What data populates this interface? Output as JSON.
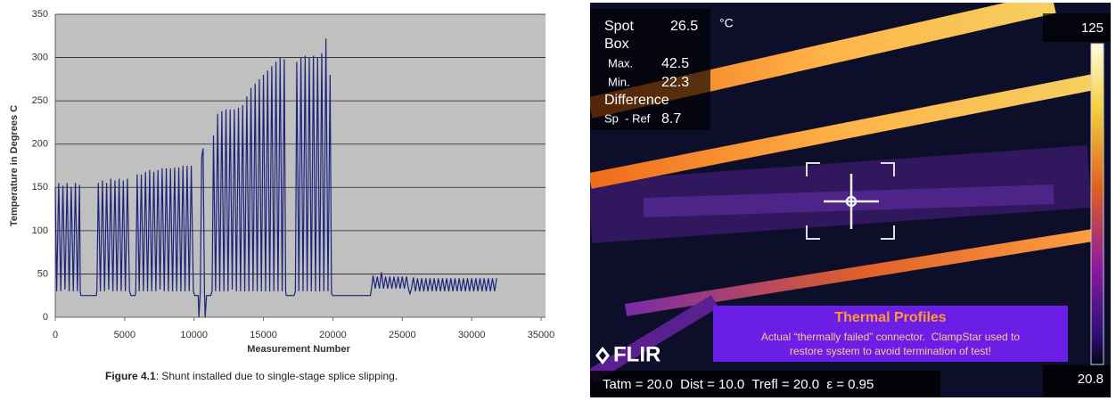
{
  "chart_data": {
    "type": "line",
    "x_label": "Measurement Number",
    "y_label": "Temperature in Degrees C",
    "xlim": [
      0,
      35000
    ],
    "xticks": [
      0,
      5000,
      10000,
      15000,
      20000,
      25000,
      30000,
      35000
    ],
    "ylim": [
      0,
      350
    ],
    "yticks": [
      0,
      50,
      100,
      150,
      200,
      250,
      300,
      350
    ],
    "grid": true,
    "background": "#c0c0c0",
    "color": "#1c237a",
    "x": [
      0,
      100,
      250,
      400,
      550,
      700,
      850,
      1000,
      1150,
      1300,
      1450,
      1600,
      1750,
      1800,
      1850,
      2950,
      3000,
      3100,
      3250,
      3400,
      3550,
      3700,
      3850,
      4000,
      4150,
      4300,
      4450,
      4600,
      4750,
      4900,
      5050,
      5200,
      5350,
      5400,
      5450,
      5750,
      5800,
      5900,
      6050,
      6200,
      6350,
      6500,
      6650,
      6800,
      6950,
      7100,
      7250,
      7400,
      7550,
      7700,
      7850,
      8000,
      8150,
      8300,
      8450,
      8600,
      8750,
      8900,
      9050,
      9200,
      9350,
      9500,
      9650,
      9800,
      9950,
      10050,
      10300,
      10350,
      10450,
      10550,
      10650,
      10750,
      10800,
      10900,
      11200,
      11300,
      11400,
      11550,
      11700,
      11850,
      12000,
      12150,
      12300,
      12450,
      12600,
      12750,
      12900,
      13050,
      13200,
      13350,
      13500,
      13650,
      13800,
      13950,
      14100,
      14250,
      14400,
      14550,
      14700,
      14850,
      15000,
      15150,
      15300,
      15450,
      15600,
      15750,
      15900,
      16050,
      16200,
      16350,
      16500,
      16600,
      16650,
      17200,
      17300,
      17400,
      17550,
      17700,
      17850,
      18000,
      18150,
      18300,
      18450,
      18600,
      18750,
      18900,
      19050,
      19200,
      19350,
      19500,
      19650,
      19800,
      19900,
      20000,
      20100,
      22700,
      22800,
      22900,
      23050,
      23200,
      23350,
      23500,
      23650,
      23800,
      23950,
      24100,
      24250,
      24400,
      24550,
      24700,
      24850,
      25000,
      25150,
      25300,
      25450,
      25550,
      25650,
      25800,
      25950,
      26100,
      26250,
      26400,
      26550,
      26700,
      26850,
      27000,
      27150,
      27300,
      27450,
      27600,
      27750,
      27900,
      28050,
      28200,
      28350,
      28500,
      28650,
      28800,
      28950,
      29100,
      29250,
      29400,
      29550,
      29700,
      29850,
      30000,
      30150,
      30300,
      30450,
      30600,
      30750,
      30900,
      31050,
      31200,
      31350,
      31500,
      31650,
      31800
    ],
    "values": [
      150,
      30,
      155,
      30,
      152,
      32,
      155,
      30,
      150,
      30,
      155,
      30,
      153,
      30,
      25,
      25,
      30,
      155,
      30,
      158,
      30,
      155,
      32,
      160,
      30,
      158,
      30,
      160,
      30,
      158,
      30,
      160,
      30,
      28,
      25,
      25,
      30,
      165,
      30,
      165,
      30,
      168,
      30,
      170,
      30,
      168,
      30,
      170,
      32,
      172,
      30,
      172,
      30,
      172,
      30,
      173,
      30,
      173,
      30,
      175,
      30,
      175,
      30,
      175,
      30,
      25,
      25,
      0,
      30,
      185,
      195,
      30,
      0,
      25,
      25,
      30,
      210,
      30,
      235,
      30,
      238,
      30,
      240,
      30,
      240,
      32,
      240,
      30,
      242,
      30,
      245,
      30,
      255,
      30,
      265,
      30,
      270,
      30,
      275,
      30,
      280,
      30,
      285,
      30,
      290,
      30,
      295,
      30,
      300,
      30,
      298,
      30,
      25,
      25,
      30,
      295,
      30,
      300,
      30,
      302,
      30,
      300,
      30,
      302,
      30,
      300,
      30,
      305,
      30,
      322,
      30,
      280,
      28,
      25,
      25,
      25,
      35,
      48,
      33,
      47,
      33,
      52,
      33,
      47,
      33,
      47,
      33,
      47,
      33,
      47,
      33,
      47,
      33,
      47,
      33,
      27,
      32,
      46,
      30,
      45,
      30,
      45,
      30,
      45,
      30,
      45,
      30,
      45,
      30,
      45,
      30,
      45,
      30,
      45,
      30,
      45,
      30,
      45,
      30,
      45,
      30,
      45,
      30,
      45,
      30,
      45,
      30,
      45,
      30,
      45,
      30,
      45,
      30,
      45,
      30,
      45,
      30,
      45
    ]
  },
  "caption": {
    "label": "Figure 4.1",
    "text": ": Shunt installed due to single-stage splice slipping."
  },
  "thermal_image": {
    "spot_label": "Spot",
    "spot_value": "26.5",
    "unit": "°C",
    "box_label": "Box",
    "max_label": "Max.",
    "max_value": "42.5",
    "min_label": "Min.",
    "min_value": "22.3",
    "difference_label": "Difference",
    "difference_ref": "Sp  - Ref",
    "difference_value": "8.7",
    "scale_max": "125",
    "scale_min": "20.8",
    "logo": "FLIR",
    "parameters": "Tatm = 20.0  Dist = 10.0  Trefl = 20.0  ε = 0.95",
    "note_title": "Thermal Profiles",
    "note_text": [
      "Actual “thermally failed” connector.  ClampStar used to",
      "restore system to avoid termination of test!"
    ]
  }
}
